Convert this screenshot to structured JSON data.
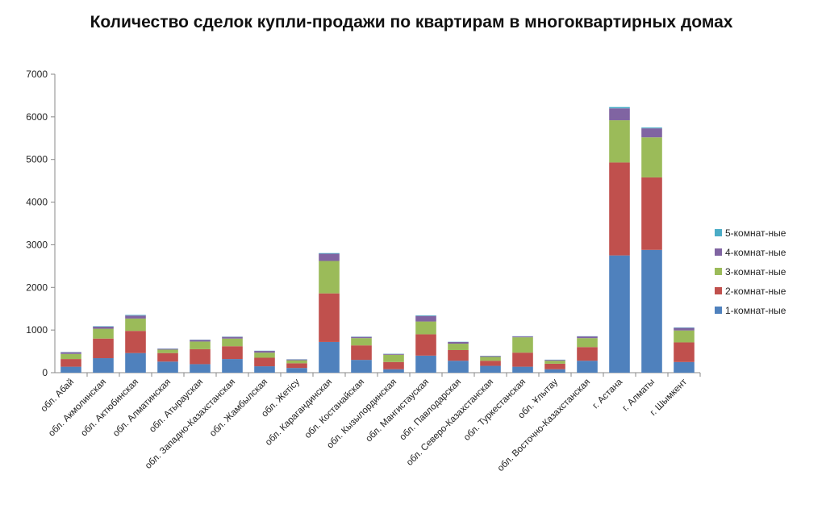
{
  "chart_data": {
    "type": "bar",
    "stacked": true,
    "title": "Количество сделок купли-продажи по квартирам в многоквартирных домах",
    "xlabel": "",
    "ylabel": "",
    "ylim": [
      0,
      7000
    ],
    "yticks": [
      0,
      1000,
      2000,
      3000,
      4000,
      5000,
      6000,
      7000
    ],
    "grid": false,
    "legend_position": "right",
    "categories": [
      "обл. Абай",
      "обл. Акмолинская",
      "обл. Актюбинская",
      "обл. Алматинская",
      "обл. Атырауская",
      "обл. Западно-Казахстанская",
      "обл. Жамбылская",
      "обл. Жетісу",
      "обл. Карагандинская",
      "обл. Костанайская",
      "обл. Кызылординская",
      "обл. Мангистауская",
      "обл. Павлодарская",
      "обл. Северо-Казахстанская",
      "обл. Туркестанская",
      "обл. Ұлытау",
      "обл. Восточно-Казахстанская",
      "г. Астана",
      "г. Алматы",
      "г. Шымкент"
    ],
    "series": [
      {
        "name": "1-комнат-ные",
        "color": "#4f81bd",
        "values": [
          140,
          340,
          460,
          260,
          200,
          320,
          150,
          110,
          720,
          300,
          80,
          400,
          280,
          160,
          140,
          80,
          280,
          2750,
          2880,
          250
        ]
      },
      {
        "name": "2-комнат-ные",
        "color": "#c0504d",
        "values": [
          180,
          460,
          520,
          200,
          350,
          300,
          200,
          110,
          1140,
          340,
          170,
          500,
          250,
          120,
          330,
          130,
          320,
          2180,
          1700,
          460
        ]
      },
      {
        "name": "3-комнат-ные",
        "color": "#9bbb59",
        "values": [
          120,
          230,
          290,
          80,
          180,
          180,
          120,
          70,
          760,
          170,
          170,
          300,
          150,
          90,
          360,
          70,
          210,
          990,
          940,
          280
        ]
      },
      {
        "name": "4-комнат-ные",
        "color": "#8064a2",
        "values": [
          40,
          50,
          70,
          20,
          40,
          40,
          40,
          20,
          170,
          30,
          20,
          130,
          40,
          20,
          20,
          20,
          40,
          280,
          210,
          60
        ]
      },
      {
        "name": "5-комнат-ные",
        "color": "#4bacc6",
        "values": [
          5,
          10,
          15,
          5,
          5,
          5,
          5,
          5,
          15,
          5,
          5,
          15,
          5,
          5,
          5,
          5,
          5,
          30,
          20,
          10
        ]
      }
    ]
  }
}
